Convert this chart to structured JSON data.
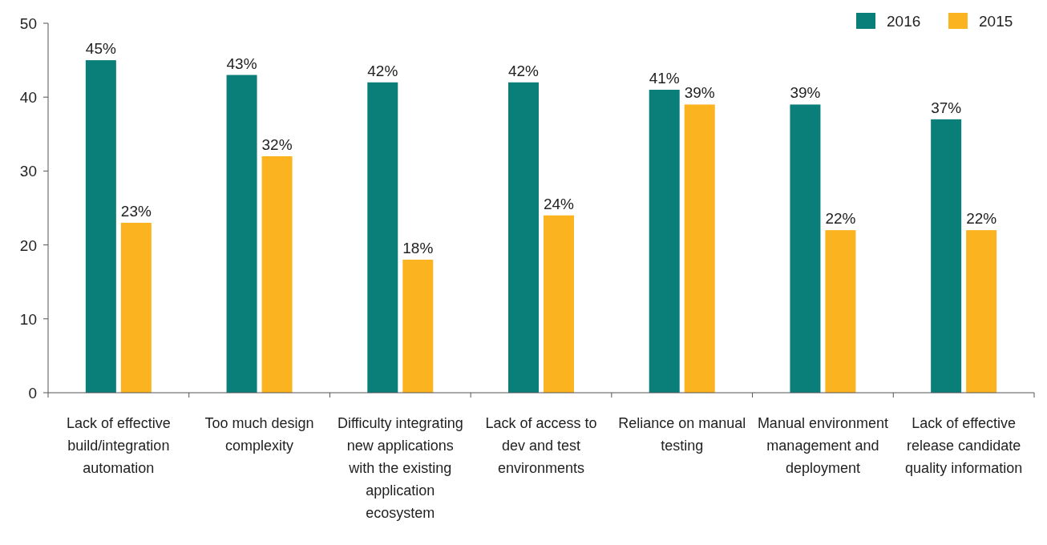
{
  "chart_data": {
    "type": "bar",
    "categories": [
      "Lack of effective build/integration automation",
      "Too much design complexity",
      "Difficulty integrating new applications with the existing application ecosystem",
      "Lack of access to dev and test environments",
      "Reliance on manual testing",
      "Manual environment management and deployment",
      "Lack of effective release candidate quality information"
    ],
    "series": [
      {
        "name": "2016",
        "color": "#0a7f7a",
        "values": [
          45,
          43,
          42,
          42,
          41,
          39,
          37
        ],
        "value_labels": [
          "45%",
          "43%",
          "42%",
          "42%",
          "41%",
          "39%",
          "37%"
        ]
      },
      {
        "name": "2015",
        "color": "#fbb31f",
        "values": [
          23,
          32,
          18,
          24,
          39,
          22,
          22
        ],
        "value_labels": [
          "23%",
          "32%",
          "18%",
          "24%",
          "39%",
          "22%",
          "22%"
        ]
      }
    ],
    "ylim": [
      0,
      50
    ],
    "yticks": [
      0,
      10,
      20,
      30,
      40,
      50
    ],
    "legend": "top right"
  }
}
